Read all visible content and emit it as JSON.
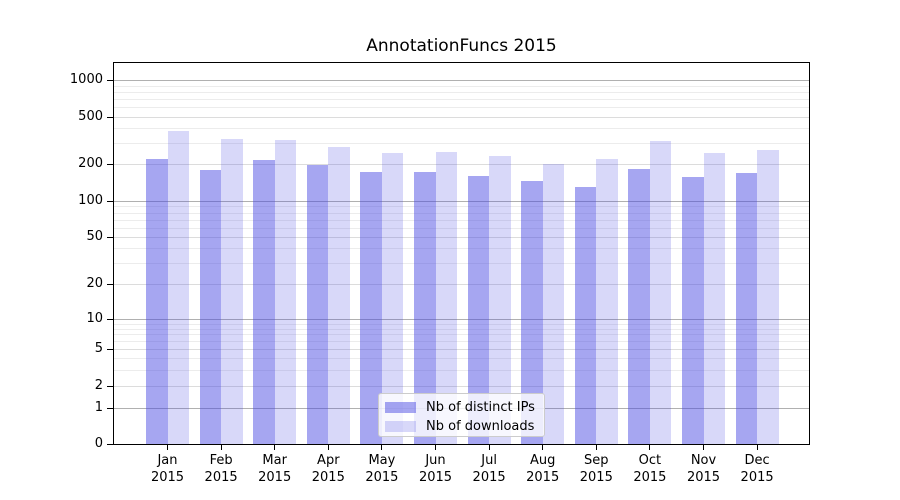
{
  "chart_data": {
    "type": "bar",
    "title": "AnnotationFuncs 2015",
    "categories": [
      "Jan",
      "Feb",
      "Mar",
      "Apr",
      "May",
      "Jun",
      "Jul",
      "Aug",
      "Sep",
      "Oct",
      "Nov",
      "Dec"
    ],
    "category_year_line": "2015",
    "series": [
      {
        "name": "Nb of distinct IPs",
        "color": "rgba(70,70,225,0.48)",
        "values": [
          220,
          179,
          218,
          196,
          173,
          171,
          160,
          145,
          130,
          181,
          158,
          168
        ]
      },
      {
        "name": "Nb of downloads",
        "color": "rgba(70,70,225,0.21)",
        "values": [
          380,
          325,
          320,
          280,
          250,
          255,
          235,
          200,
          220,
          312,
          250,
          265
        ]
      }
    ],
    "yscale": "symlog",
    "ylim": [
      0,
      1400
    ],
    "yticks_labeled": [
      1000,
      500,
      200,
      100,
      50,
      20,
      10,
      5,
      2,
      1,
      0
    ],
    "yticks_minor": [
      3,
      4,
      6,
      7,
      8,
      9,
      30,
      40,
      60,
      70,
      80,
      90,
      300,
      400,
      600,
      700,
      800,
      900
    ],
    "grid": true,
    "legend": {
      "position": "lower center",
      "entries": [
        "Nb of distinct IPs",
        "Nb of downloads"
      ]
    },
    "grid_colors": {
      "major_power10": "#b0b0b0",
      "labeled_minor": "#dcdcdc",
      "unlabeled_minor": "#ececec"
    }
  }
}
